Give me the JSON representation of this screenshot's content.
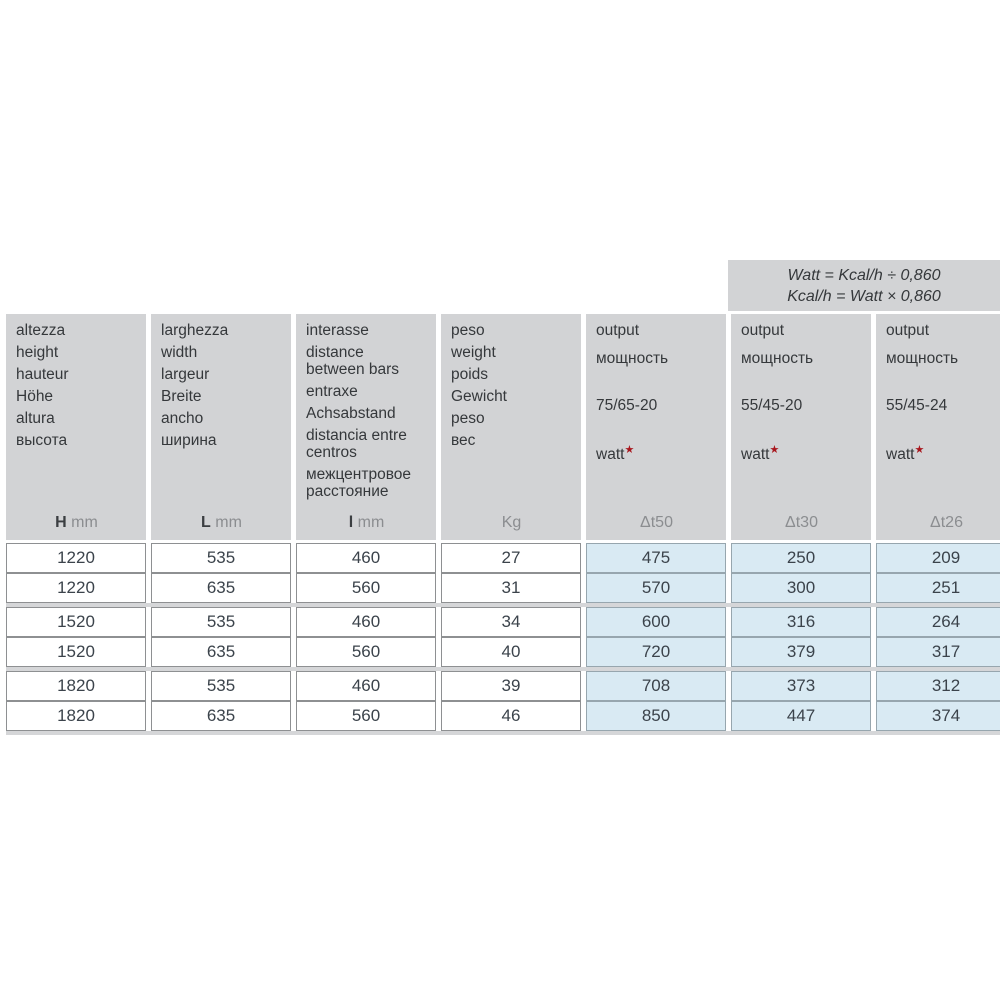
{
  "formula": {
    "line1": "Watt = Kcal/h ÷ 0,860",
    "line2": "Kcal/h = Watt × 0,860"
  },
  "table": {
    "columns": [
      {
        "key": "height",
        "labels": [
          "altezza",
          "height",
          "hauteur",
          "Höhe",
          "altura",
          "высота"
        ],
        "unit": {
          "bold": "H",
          "rest": " mm"
        }
      },
      {
        "key": "width",
        "labels": [
          "larghezza",
          "width",
          "largeur",
          "Breite",
          "ancho",
          "ширина"
        ],
        "unit": {
          "bold": "L",
          "rest": " mm"
        }
      },
      {
        "key": "distance-between-bars",
        "labels": [
          "interasse",
          "distance\nbetween bars",
          "entraxe",
          "Achsabstand",
          "distancia entre\ncentros",
          "межцентровое\nрасстояние"
        ],
        "unit": {
          "bold": "l",
          "rest": " mm"
        }
      },
      {
        "key": "weight",
        "labels": [
          "peso",
          "weight",
          "poids",
          "Gewicht",
          "peso",
          "вес"
        ],
        "unit": {
          "bold": "",
          "rest": "Kg"
        }
      },
      {
        "key": "output-dt50",
        "type": "output",
        "labels": [
          "output",
          "мощность"
        ],
        "rating": "75/65-20",
        "unit_word": "watt",
        "star": "★",
        "unit": {
          "bold": "",
          "rest": "Δt50"
        }
      },
      {
        "key": "output-dt30",
        "type": "output",
        "labels": [
          "output",
          "мощность"
        ],
        "rating": "55/45-20",
        "unit_word": "watt",
        "star": "★",
        "unit": {
          "bold": "",
          "rest": "Δt30"
        }
      },
      {
        "key": "output-dt26",
        "type": "output",
        "labels": [
          "output",
          "мощность"
        ],
        "rating": "55/45-24",
        "unit_word": "watt",
        "star": "★",
        "unit": {
          "bold": "",
          "rest": "Δt26"
        }
      }
    ],
    "output_columns_start": 4,
    "row_groups": [
      {
        "rows": [
          [
            "1220",
            "535",
            "460",
            "27",
            "475",
            "250",
            "209"
          ],
          [
            "1220",
            "635",
            "560",
            "31",
            "570",
            "300",
            "251"
          ]
        ]
      },
      {
        "rows": [
          [
            "1520",
            "535",
            "460",
            "34",
            "600",
            "316",
            "264"
          ],
          [
            "1520",
            "635",
            "560",
            "40",
            "720",
            "379",
            "317"
          ]
        ]
      },
      {
        "rows": [
          [
            "1820",
            "535",
            "460",
            "39",
            "708",
            "373",
            "312"
          ],
          [
            "1820",
            "635",
            "560",
            "46",
            "850",
            "447",
            "374"
          ]
        ]
      }
    ]
  },
  "colors": {
    "header_bg": "#d2d3d5",
    "output_cell_bg": "#d9eaf3",
    "group_separator": "#d5d6d8",
    "star_red": "#a8161d",
    "text_dark": "#3b434b",
    "text_gray": "#8b8d90"
  }
}
